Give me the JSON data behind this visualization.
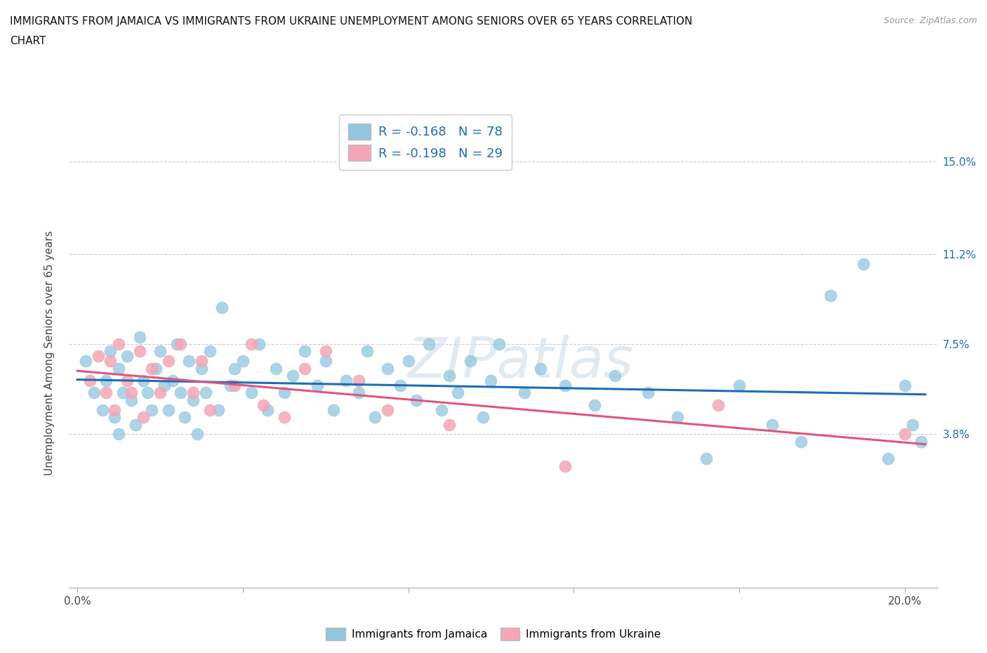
{
  "title_line1": "IMMIGRANTS FROM JAMAICA VS IMMIGRANTS FROM UKRAINE UNEMPLOYMENT AMONG SENIORS OVER 65 YEARS CORRELATION",
  "title_line2": "CHART",
  "source": "Source: ZipAtlas.com",
  "ylabel": "Unemployment Among Seniors over 65 years",
  "xlim": [
    -0.002,
    0.208
  ],
  "ylim": [
    -0.025,
    0.168
  ],
  "xtick_positions": [
    0.0,
    0.04,
    0.08,
    0.12,
    0.16,
    0.2
  ],
  "xtick_labels": [
    "0.0%",
    "",
    "",
    "",
    "",
    "20.0%"
  ],
  "ytick_values": [
    0.038,
    0.075,
    0.112,
    0.15
  ],
  "ytick_labels": [
    "3.8%",
    "7.5%",
    "11.2%",
    "15.0%"
  ],
  "jamaica_color": "#92c5de",
  "ukraine_color": "#f4a6b8",
  "jamaica_line_color": "#1f6db5",
  "ukraine_line_color": "#e05580",
  "jamaica_R": -0.168,
  "jamaica_N": 78,
  "ukraine_R": -0.198,
  "ukraine_N": 29,
  "background_color": "#ffffff",
  "grid_color": "#cccccc",
  "jamaica_x": [
    0.002,
    0.004,
    0.006,
    0.007,
    0.008,
    0.009,
    0.01,
    0.01,
    0.011,
    0.012,
    0.013,
    0.014,
    0.015,
    0.016,
    0.017,
    0.018,
    0.019,
    0.02,
    0.021,
    0.022,
    0.023,
    0.024,
    0.025,
    0.026,
    0.027,
    0.028,
    0.029,
    0.03,
    0.031,
    0.032,
    0.034,
    0.035,
    0.037,
    0.038,
    0.04,
    0.042,
    0.044,
    0.046,
    0.048,
    0.05,
    0.052,
    0.055,
    0.058,
    0.06,
    0.062,
    0.065,
    0.068,
    0.07,
    0.072,
    0.075,
    0.078,
    0.08,
    0.082,
    0.085,
    0.088,
    0.09,
    0.092,
    0.095,
    0.098,
    0.1,
    0.102,
    0.108,
    0.112,
    0.118,
    0.125,
    0.13,
    0.138,
    0.145,
    0.152,
    0.16,
    0.168,
    0.175,
    0.182,
    0.19,
    0.196,
    0.2,
    0.202,
    0.204
  ],
  "jamaica_y": [
    0.068,
    0.055,
    0.048,
    0.06,
    0.072,
    0.045,
    0.065,
    0.038,
    0.055,
    0.07,
    0.052,
    0.042,
    0.078,
    0.06,
    0.055,
    0.048,
    0.065,
    0.072,
    0.058,
    0.048,
    0.06,
    0.075,
    0.055,
    0.045,
    0.068,
    0.052,
    0.038,
    0.065,
    0.055,
    0.072,
    0.048,
    0.09,
    0.058,
    0.065,
    0.068,
    0.055,
    0.075,
    0.048,
    0.065,
    0.055,
    0.062,
    0.072,
    0.058,
    0.068,
    0.048,
    0.06,
    0.055,
    0.072,
    0.045,
    0.065,
    0.058,
    0.068,
    0.052,
    0.075,
    0.048,
    0.062,
    0.055,
    0.068,
    0.045,
    0.06,
    0.075,
    0.055,
    0.065,
    0.058,
    0.05,
    0.062,
    0.055,
    0.045,
    0.028,
    0.058,
    0.042,
    0.035,
    0.095,
    0.108,
    0.028,
    0.058,
    0.042,
    0.035
  ],
  "ukraine_x": [
    0.003,
    0.005,
    0.007,
    0.008,
    0.009,
    0.01,
    0.012,
    0.013,
    0.015,
    0.016,
    0.018,
    0.02,
    0.022,
    0.025,
    0.028,
    0.03,
    0.032,
    0.038,
    0.042,
    0.045,
    0.05,
    0.055,
    0.06,
    0.068,
    0.075,
    0.09,
    0.118,
    0.155,
    0.2
  ],
  "ukraine_y": [
    0.06,
    0.07,
    0.055,
    0.068,
    0.048,
    0.075,
    0.06,
    0.055,
    0.072,
    0.045,
    0.065,
    0.055,
    0.068,
    0.075,
    0.055,
    0.068,
    0.048,
    0.058,
    0.075,
    0.05,
    0.045,
    0.065,
    0.072,
    0.06,
    0.048,
    0.042,
    0.025,
    0.05,
    0.038
  ],
  "watermark_text": "ZIPatlas",
  "legend_R_label1": "R = -0.168   N = 78",
  "legend_R_label2": "R = -0.198   N = 29",
  "legend_bottom_label1": "Immigrants from Jamaica",
  "legend_bottom_label2": "Immigrants from Ukraine"
}
